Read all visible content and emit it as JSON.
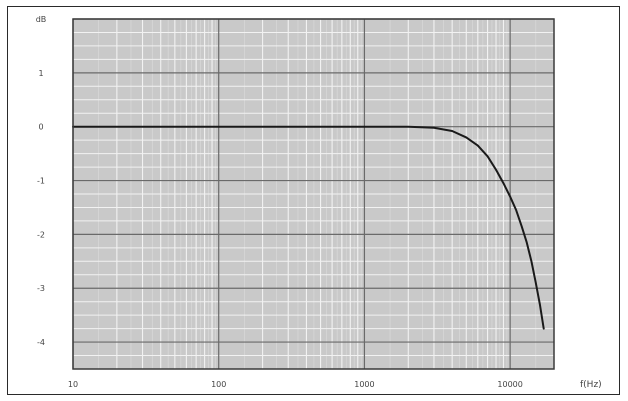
{
  "chart_data": {
    "type": "line",
    "x_scale": "log",
    "xlim": [
      10,
      20000
    ],
    "ylim": [
      -4.5,
      2
    ],
    "x_tick_labels": [
      {
        "value": 10,
        "label": "10"
      },
      {
        "value": 100,
        "label": "100"
      },
      {
        "value": 1000,
        "label": "1000"
      },
      {
        "value": 10000,
        "label": "10000"
      }
    ],
    "y_tick_labels": [
      {
        "value": 2,
        "label": "dB"
      },
      {
        "value": 1,
        "label": "1"
      },
      {
        "value": 0,
        "label": "0"
      },
      {
        "value": -1,
        "label": "-1"
      },
      {
        "value": -2,
        "label": "-2"
      },
      {
        "value": -3,
        "label": "-3"
      },
      {
        "value": -4,
        "label": "-4"
      }
    ],
    "xlabel": "f(Hz)",
    "grid": true,
    "series": [
      {
        "color": "#1a1a1a",
        "points": [
          [
            10,
            0
          ],
          [
            100,
            0
          ],
          [
            1000,
            0
          ],
          [
            2000,
            0
          ],
          [
            3000,
            -0.02
          ],
          [
            4000,
            -0.08
          ],
          [
            5000,
            -0.2
          ],
          [
            6000,
            -0.35
          ],
          [
            7000,
            -0.55
          ],
          [
            8000,
            -0.8
          ],
          [
            9000,
            -1.05
          ],
          [
            10000,
            -1.3
          ],
          [
            11000,
            -1.55
          ],
          [
            12000,
            -1.85
          ],
          [
            13000,
            -2.15
          ],
          [
            14000,
            -2.5
          ],
          [
            15000,
            -2.9
          ],
          [
            16000,
            -3.3
          ],
          [
            17000,
            -3.75
          ]
        ]
      }
    ],
    "colors": {
      "paper": "#c9c9c9",
      "grid_minor": "#f2f2f2",
      "grid_major": "#6a6a6a",
      "curve": "#1a1a1a"
    }
  }
}
